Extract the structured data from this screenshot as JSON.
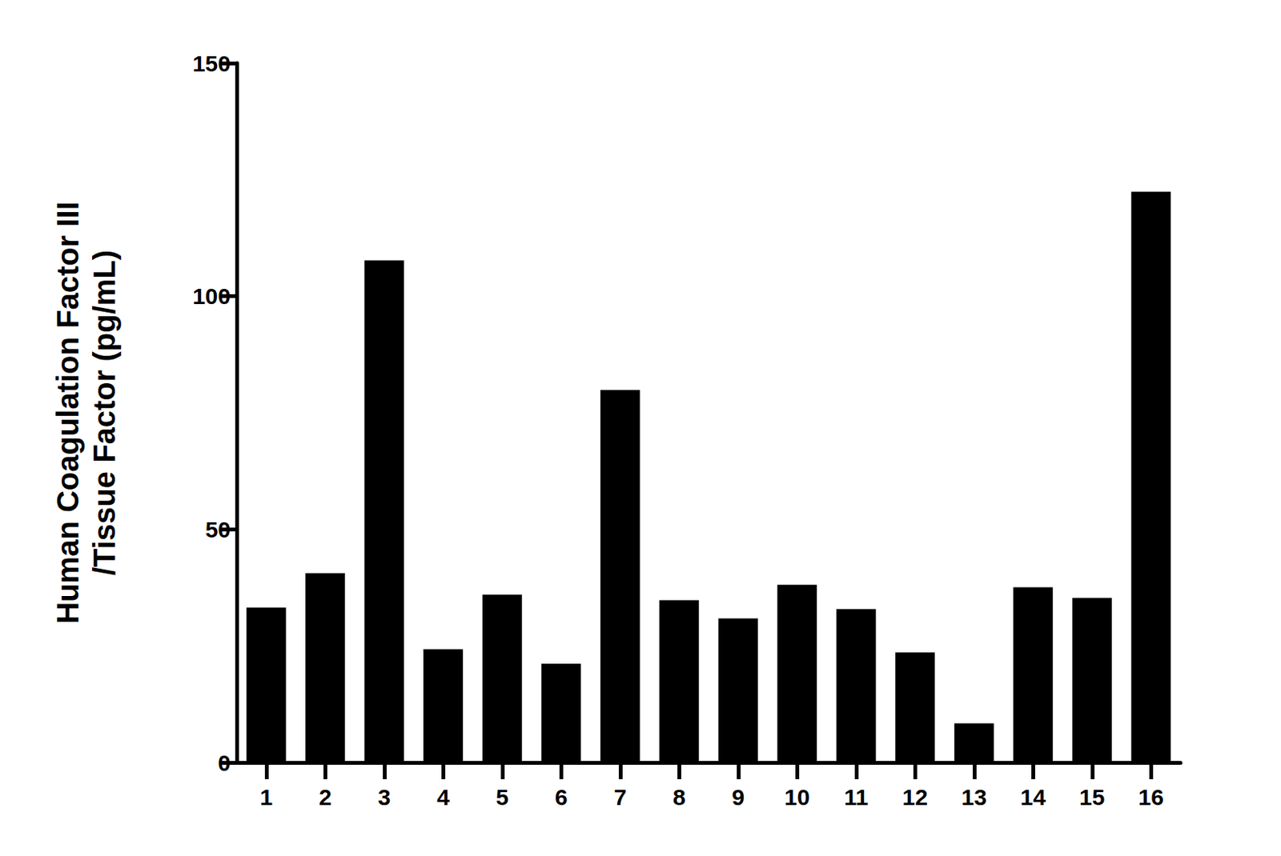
{
  "chart_data": {
    "type": "bar",
    "y_label": "Human Coagulation Factor III\n/Tissue Factor (pg/mL)",
    "categories": [
      "1",
      "2",
      "3",
      "4",
      "5",
      "6",
      "7",
      "8",
      "9",
      "10",
      "11",
      "12",
      "13",
      "14",
      "15",
      "16"
    ],
    "values": [
      33.2,
      40.6,
      107.7,
      24.3,
      36.0,
      21.2,
      79.9,
      34.8,
      30.9,
      38.1,
      32.9,
      23.6,
      8.4,
      37.6,
      35.3,
      122.4
    ],
    "color": "#000000",
    "ylim": [
      0,
      150
    ],
    "yticks": [
      0,
      50,
      100,
      150
    ],
    "grid": false
  }
}
